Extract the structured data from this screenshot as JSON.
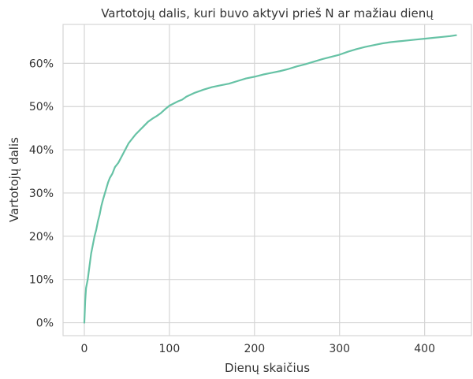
{
  "chart_data": {
    "type": "line",
    "title": "Vartotojų dalis, kuri buvo aktyvi prieš N ar mažiau dienų",
    "xlabel": "Dienų skaičius",
    "ylabel": "Vartotojų dalis",
    "xlim": [
      -25,
      455
    ],
    "ylim": [
      -0.03,
      0.69
    ],
    "x_ticks": [
      0,
      100,
      200,
      300,
      400
    ],
    "x_tick_labels": [
      "0",
      "100",
      "200",
      "300",
      "400"
    ],
    "y_ticks": [
      0,
      0.1,
      0.2,
      0.3,
      0.4,
      0.5,
      0.6
    ],
    "y_tick_labels": [
      "0%",
      "10%",
      "20%",
      "30%",
      "40%",
      "50%",
      "60%"
    ],
    "grid": true,
    "line_color": "#66c2a5",
    "series": [
      {
        "x": [
          0,
          1,
          2,
          4,
          6,
          8,
          10,
          12,
          14,
          16,
          18,
          20,
          22,
          25,
          28,
          30,
          33,
          36,
          40,
          44,
          48,
          52,
          56,
          60,
          65,
          70,
          75,
          80,
          85,
          90,
          95,
          100,
          105,
          110,
          115,
          120,
          130,
          140,
          150,
          160,
          170,
          180,
          190,
          200,
          210,
          220,
          230,
          240,
          250,
          260,
          270,
          280,
          290,
          300,
          310,
          320,
          330,
          340,
          350,
          360,
          370,
          380,
          390,
          400,
          410,
          420,
          430,
          437
        ],
        "y": [
          0.0,
          0.05,
          0.08,
          0.1,
          0.13,
          0.16,
          0.18,
          0.2,
          0.215,
          0.235,
          0.25,
          0.27,
          0.285,
          0.305,
          0.325,
          0.335,
          0.345,
          0.36,
          0.37,
          0.385,
          0.4,
          0.415,
          0.425,
          0.435,
          0.445,
          0.455,
          0.465,
          0.472,
          0.478,
          0.485,
          0.494,
          0.502,
          0.507,
          0.512,
          0.516,
          0.523,
          0.532,
          0.539,
          0.545,
          0.549,
          0.553,
          0.559,
          0.565,
          0.569,
          0.574,
          0.578,
          0.582,
          0.587,
          0.593,
          0.598,
          0.604,
          0.61,
          0.615,
          0.62,
          0.627,
          0.633,
          0.638,
          0.642,
          0.646,
          0.649,
          0.651,
          0.653,
          0.655,
          0.657,
          0.659,
          0.661,
          0.663,
          0.665
        ]
      }
    ]
  }
}
